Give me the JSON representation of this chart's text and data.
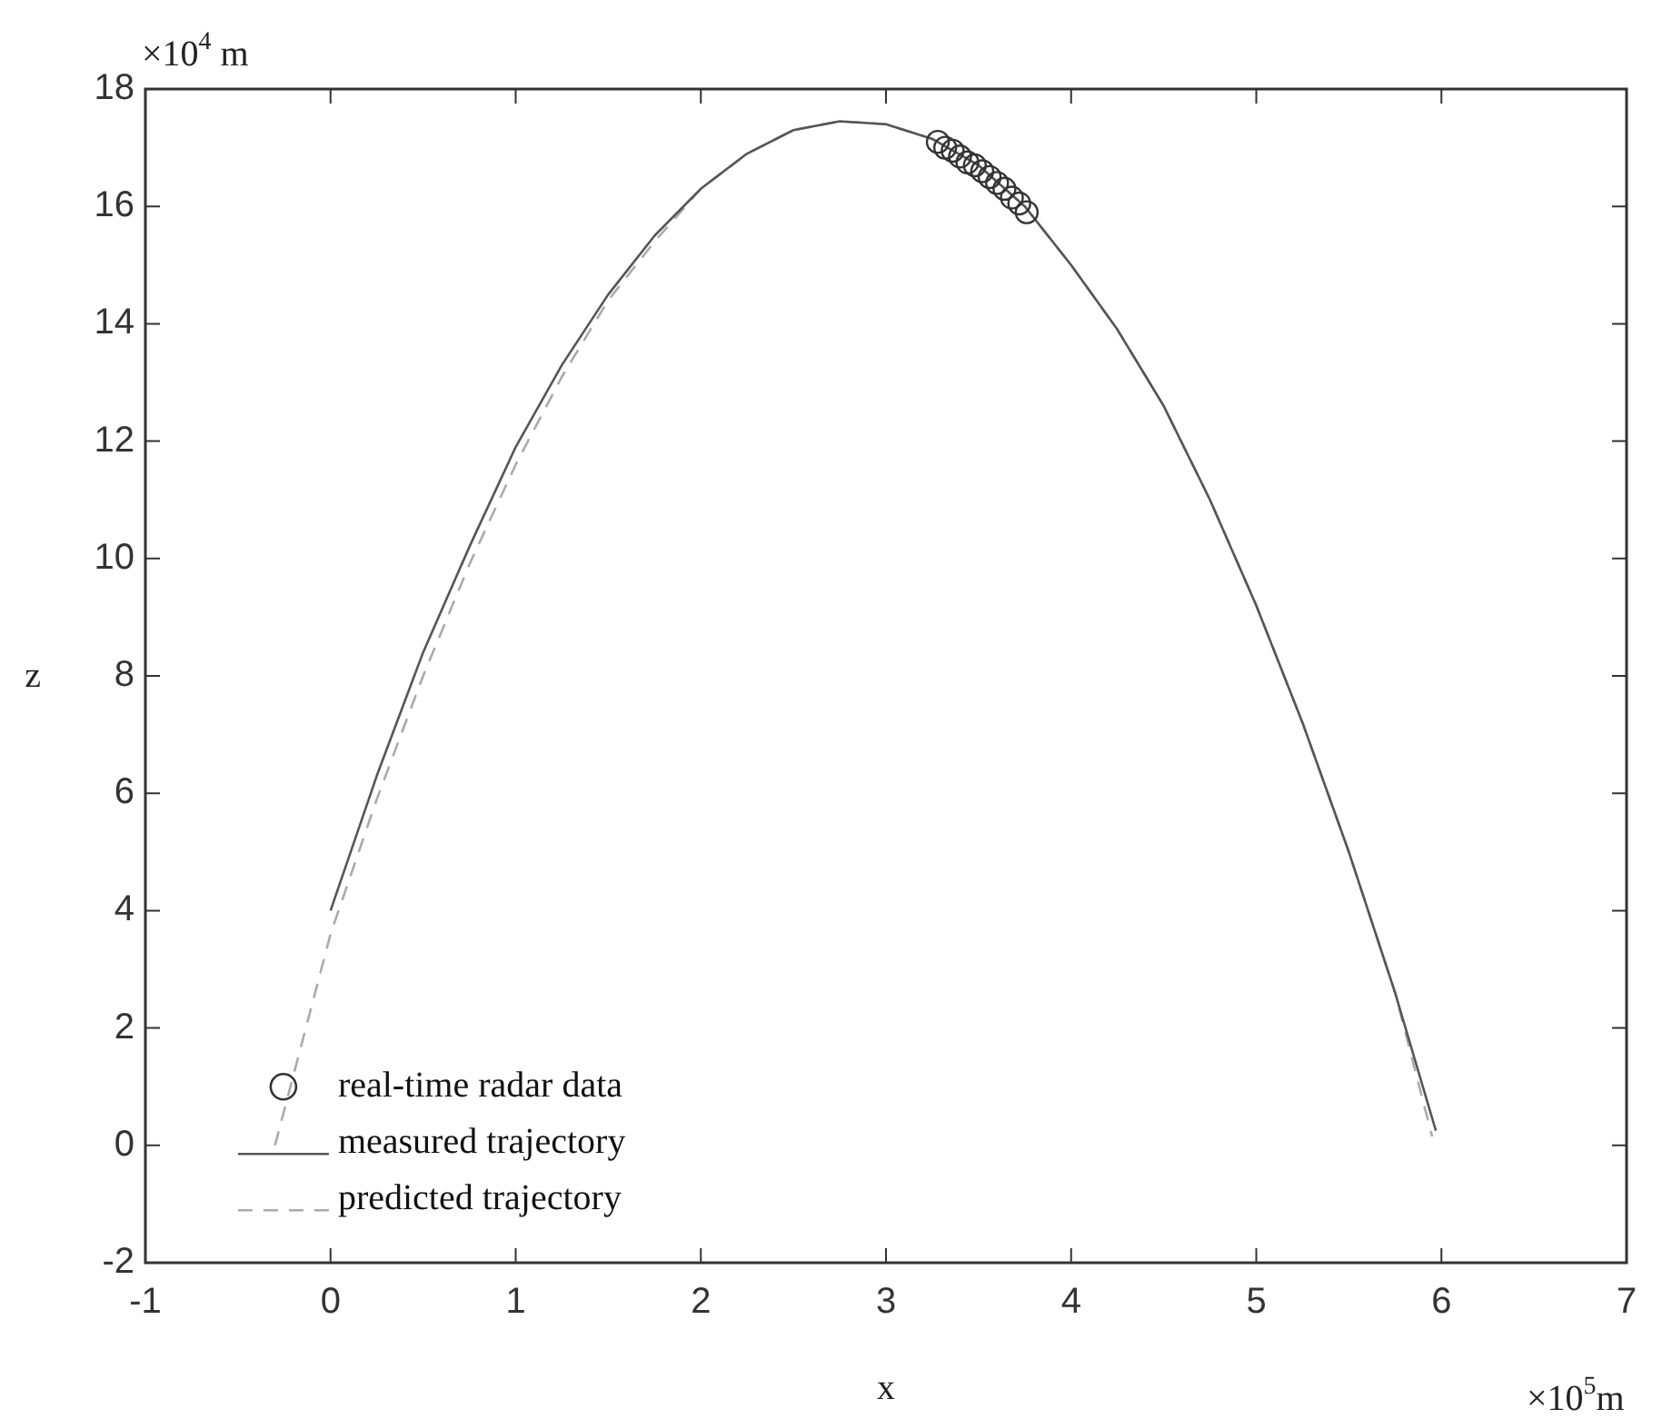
{
  "chart_data": {
    "type": "line",
    "xlabel": "x",
    "ylabel": "z",
    "annotations": [
      "×10$^{4}$ m",
      "×10$^{5}$m"
    ],
    "xlim": [
      -1,
      7
    ],
    "xticks": [
      -1,
      0,
      1,
      2,
      3,
      4,
      5,
      6,
      7
    ],
    "ylim": [
      -2,
      18
    ],
    "yticks": [
      -2,
      0,
      2,
      4,
      6,
      8,
      10,
      12,
      14,
      16,
      18
    ],
    "grid": false,
    "legend": "bottom left",
    "series": [
      {
        "name": "real-time radar data",
        "type": "scatter",
        "marker": "circle",
        "color": "#333333",
        "x": [
          3.28,
          3.32,
          3.36,
          3.4,
          3.44,
          3.48,
          3.52,
          3.56,
          3.6,
          3.64,
          3.68,
          3.72,
          3.76
        ],
        "values": [
          17.1,
          17.0,
          16.95,
          16.85,
          16.75,
          16.7,
          16.6,
          16.5,
          16.4,
          16.3,
          16.15,
          16.05,
          15.9
        ]
      },
      {
        "name": "measured trajectory",
        "type": "line",
        "line_style": "solid",
        "marker": "none",
        "color": "#555555",
        "x": [
          0,
          0.25,
          0.5,
          0.75,
          1,
          1.25,
          1.5,
          1.75,
          2,
          2.25,
          2.5,
          2.75,
          3,
          3.25,
          3.5,
          3.75,
          4,
          4.25,
          4.5,
          4.75,
          5,
          5.25,
          5.5,
          5.75,
          5.97
        ],
        "values": [
          4.0,
          6.3,
          8.4,
          10.2,
          11.9,
          13.3,
          14.5,
          15.5,
          16.3,
          16.9,
          17.3,
          17.45,
          17.4,
          17.15,
          16.7,
          16.0,
          15.0,
          13.9,
          12.6,
          11.0,
          9.2,
          7.2,
          5.0,
          2.6,
          0.25
        ]
      },
      {
        "name": "predicted trajectory",
        "type": "line",
        "line_style": "dashed",
        "marker": "none",
        "color": "#aaaaaa",
        "x": [
          -0.3,
          0,
          0.25,
          0.5,
          0.75,
          1,
          1.25,
          1.5,
          1.75,
          2,
          2.25,
          2.5,
          2.75,
          3,
          3.25,
          3.5,
          3.75,
          4,
          4.25,
          4.5,
          4.75,
          5,
          5.25,
          5.5,
          5.75,
          5.95
        ],
        "values": [
          0,
          3.6,
          5.9,
          8.0,
          9.9,
          11.6,
          13.1,
          14.4,
          15.4,
          16.3,
          16.9,
          17.3,
          17.45,
          17.4,
          17.15,
          16.7,
          16.0,
          15.0,
          13.9,
          12.6,
          11.0,
          9.2,
          7.2,
          5.0,
          2.6,
          0.15
        ]
      }
    ]
  }
}
